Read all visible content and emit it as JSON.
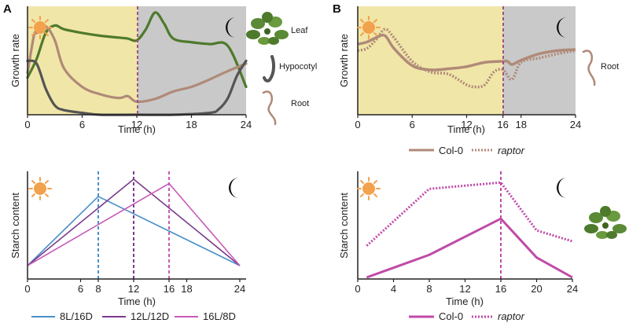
{
  "panel_labels": {
    "a": "A",
    "b": "B"
  },
  "colors": {
    "day_bg": "#f0e6a8",
    "night_bg": "#c9c9c9",
    "leaf": "#4e7a2c",
    "hypocotyl": "#555555",
    "root": "#b08a78",
    "divider": "#a0508a",
    "series_8L": "#4a90c8",
    "series_12L": "#7a3a8a",
    "series_16L": "#c85ab8",
    "starch_b": "#c04aa8",
    "sun": "#f2a24c",
    "moon": "#111111"
  },
  "icons": {
    "sun": "sun-icon",
    "moon": "moon-icon",
    "plant": "plant-icon",
    "root": "root-icon",
    "hypocotyl": "hypocotyl-icon"
  },
  "chart_data": [
    {
      "id": "A-top",
      "type": "line",
      "xlabel": "Time (h)",
      "ylabel": "Growth rate",
      "xlim": [
        0,
        24
      ],
      "x_ticks": [
        "0",
        "6",
        "12",
        "18",
        "24"
      ],
      "day_period": [
        0,
        12
      ],
      "night_period": [
        12,
        24
      ],
      "divider_at": 12,
      "annotations": [
        "Leaf",
        "Hypocotyl",
        "Root"
      ],
      "series": [
        {
          "name": "Leaf",
          "color": "leaf",
          "x": [
            0,
            1,
            2,
            3,
            4,
            6,
            8,
            10,
            11,
            12,
            13,
            14,
            15,
            16,
            18,
            20,
            22,
            24
          ],
          "y": [
            0.4,
            0.6,
            0.88,
            0.96,
            0.92,
            0.88,
            0.85,
            0.83,
            0.82,
            0.8,
            0.92,
            1.1,
            0.98,
            0.82,
            0.78,
            0.76,
            0.74,
            0.3
          ]
        },
        {
          "name": "Root",
          "color": "root",
          "x": [
            0,
            0.7,
            1,
            2,
            3,
            4,
            6,
            8,
            10,
            11,
            12,
            14,
            16,
            18,
            20,
            22,
            24
          ],
          "y": [
            0.45,
            0.85,
            0.88,
            0.95,
            0.8,
            0.5,
            0.3,
            0.22,
            0.18,
            0.2,
            0.14,
            0.17,
            0.25,
            0.3,
            0.38,
            0.47,
            0.55
          ]
        },
        {
          "name": "Hypocotyl",
          "color": "hypocotyl",
          "x": [
            0,
            1,
            2,
            3,
            4,
            6,
            8,
            12,
            16,
            20,
            21,
            22,
            23,
            24
          ],
          "y": [
            0.58,
            0.55,
            0.28,
            0.1,
            0.05,
            0.02,
            0.0,
            0.0,
            0.0,
            0.02,
            0.06,
            0.18,
            0.42,
            0.58
          ]
        }
      ]
    },
    {
      "id": "B-top",
      "type": "line",
      "xlabel": "Time (h)",
      "ylabel": "Growth rate",
      "xlim": [
        0,
        24
      ],
      "x_ticks": [
        "0",
        "6",
        "12",
        "16",
        "18",
        "24"
      ],
      "day_period": [
        0,
        16
      ],
      "night_period": [
        16,
        24
      ],
      "divider_at": 16,
      "annotations": [
        "Root"
      ],
      "legend": [
        "Col-0",
        "raptor"
      ],
      "series": [
        {
          "name": "Col-0",
          "style": "solid",
          "x": [
            0,
            1,
            2,
            3,
            4,
            6,
            8,
            10,
            12,
            14,
            16,
            16.5,
            17,
            18,
            20,
            22,
            24
          ],
          "y": [
            0.66,
            0.68,
            0.72,
            0.74,
            0.62,
            0.46,
            0.42,
            0.43,
            0.45,
            0.49,
            0.5,
            0.5,
            0.47,
            0.51,
            0.57,
            0.6,
            0.61
          ]
        },
        {
          "name": "raptor",
          "style": "dotted",
          "x": [
            0,
            1,
            2,
            3,
            4,
            6,
            8,
            10,
            12,
            13,
            14,
            15,
            16,
            17,
            18,
            20,
            22,
            24
          ],
          "y": [
            0.6,
            0.62,
            0.7,
            0.8,
            0.72,
            0.5,
            0.4,
            0.38,
            0.28,
            0.26,
            0.28,
            0.4,
            0.42,
            0.33,
            0.49,
            0.53,
            0.57,
            0.6
          ]
        }
      ]
    },
    {
      "id": "A-bottom",
      "type": "line",
      "xlabel": "Time (h)",
      "ylabel": "Starch content",
      "xlim": [
        0,
        24
      ],
      "x_ticks": [
        "0",
        "6",
        "8",
        "12",
        "16",
        "18",
        "24"
      ],
      "legend": [
        "8L/16D",
        "12L/12D",
        "16L/8D"
      ],
      "series": [
        {
          "name": "8L/16D",
          "color": "series_8L",
          "x": [
            0,
            8,
            24
          ],
          "y": [
            0.0,
            0.8,
            0.0
          ],
          "divider_at": 8
        },
        {
          "name": "12L/12D",
          "color": "series_12L",
          "x": [
            0,
            12,
            24
          ],
          "y": [
            0.0,
            1.0,
            0.0
          ],
          "divider_at": 12
        },
        {
          "name": "16L/8D",
          "color": "series_16L",
          "x": [
            0,
            16,
            24
          ],
          "y": [
            0.0,
            0.95,
            0.0
          ],
          "divider_at": 16
        }
      ]
    },
    {
      "id": "B-bottom",
      "type": "line",
      "xlabel": "Time (h)",
      "ylabel": "Starch content",
      "xlim": [
        0,
        24
      ],
      "x_ticks": [
        "0",
        "4",
        "8",
        "12",
        "16",
        "20",
        "24"
      ],
      "divider_at": 16,
      "legend": [
        "Col-0",
        "raptor"
      ],
      "series": [
        {
          "name": "Col-0",
          "style": "solid",
          "x": [
            1,
            8,
            16,
            20,
            24
          ],
          "y": [
            0.0,
            0.25,
            0.65,
            0.22,
            0.0
          ]
        },
        {
          "name": "raptor",
          "style": "dotted",
          "x": [
            1,
            8,
            16,
            20,
            24
          ],
          "y": [
            0.35,
            0.98,
            1.05,
            0.52,
            0.4
          ]
        }
      ]
    }
  ]
}
